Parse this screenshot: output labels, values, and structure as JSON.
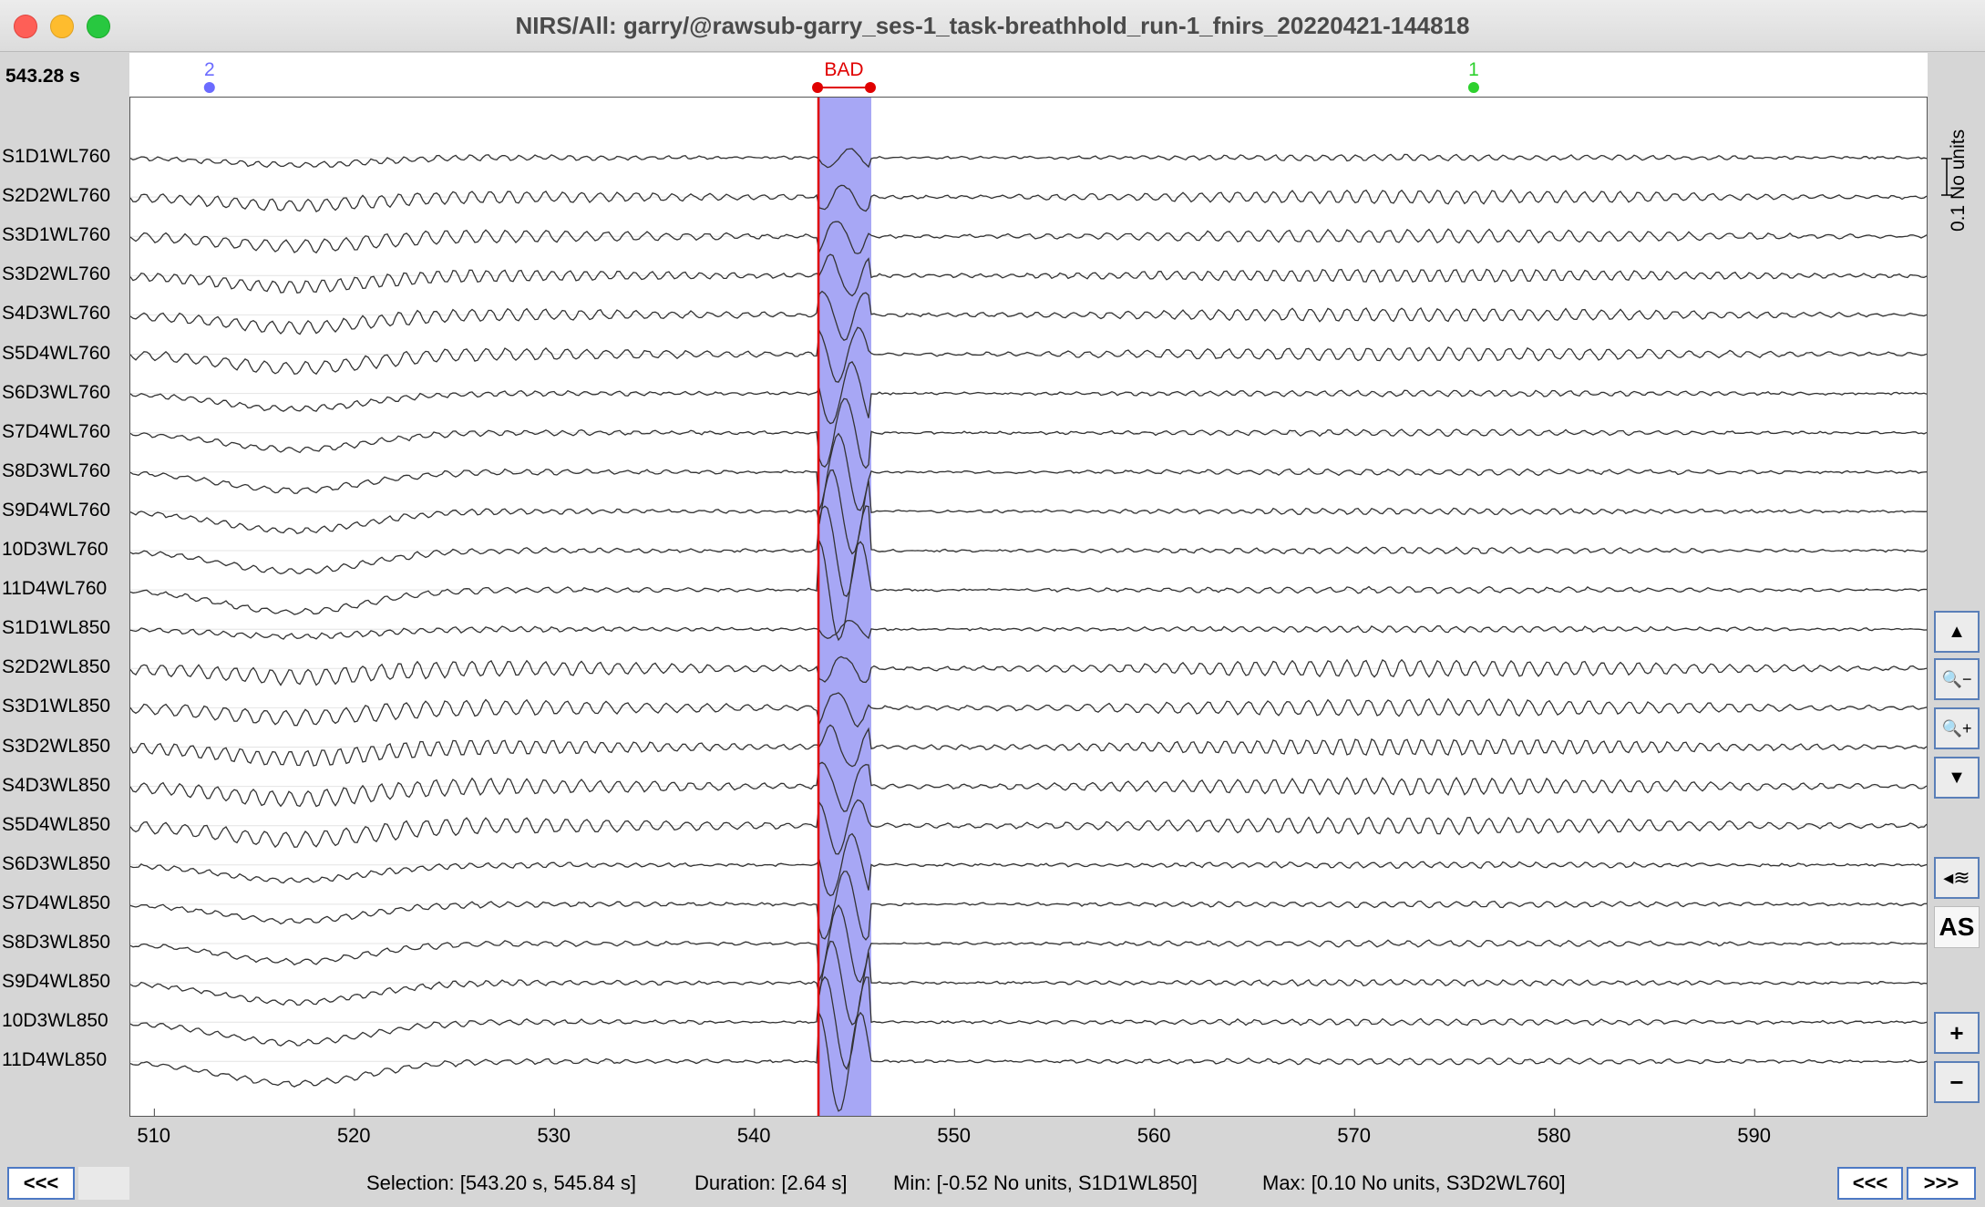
{
  "window": {
    "title": "NIRS/All: garry/@rawsub-garry_ses-1_task-breathhold_run-1_fnirs_20220421-144818"
  },
  "current_time": "543.28 s",
  "events": [
    {
      "label": "2",
      "time": 512.8,
      "color": "#6b6bff"
    },
    {
      "label": "BAD",
      "time_start": 543.2,
      "time_end": 545.84,
      "color": "#e00000"
    },
    {
      "label": "1",
      "time": 576.0,
      "color": "#2ed12e"
    }
  ],
  "time_axis": {
    "start": 508.8,
    "end": 598.6,
    "ticks": [
      "510",
      "520",
      "530",
      "540",
      "550",
      "560",
      "570",
      "580",
      "590"
    ]
  },
  "channels": [
    "S1D1WL760",
    "S2D2WL760",
    "S3D1WL760",
    "S3D2WL760",
    "S4D3WL760",
    "S5D4WL760",
    "S6D3WL760",
    "S7D4WL760",
    "S8D3WL760",
    "S9D4WL760",
    "10D3WL760",
    "11D4WL760",
    "S1D1WL850",
    "S2D2WL850",
    "S3D1WL850",
    "S3D2WL850",
    "S4D3WL850",
    "S5D4WL850",
    "S6D3WL850",
    "S7D4WL850",
    "S8D3WL850",
    "S9D4WL850",
    "10D3WL850",
    "11D4WL850"
  ],
  "scale_label": "0.1 No units",
  "side_buttons": {
    "up": "▲",
    "zoom_out": "🔍−",
    "zoom_in": "🔍+",
    "down": "▼",
    "filter": "◂≋",
    "as": "AS",
    "plus": "+",
    "minus": "−"
  },
  "status": {
    "selection": "Selection: [543.20 s, 545.84 s]",
    "duration": "Duration: [2.64 s]",
    "min": "Min: [-0.52 No units, S1D1WL850]",
    "max": "Max: [0.10 No units, S3D2WL760]"
  },
  "nav": {
    "prev_left": "<<<",
    "prev_right": "<<<",
    "next_right": ">>>"
  },
  "colors": {
    "selection": "#a7a7f5",
    "cursor": "#e00000",
    "trace": "#333333"
  }
}
